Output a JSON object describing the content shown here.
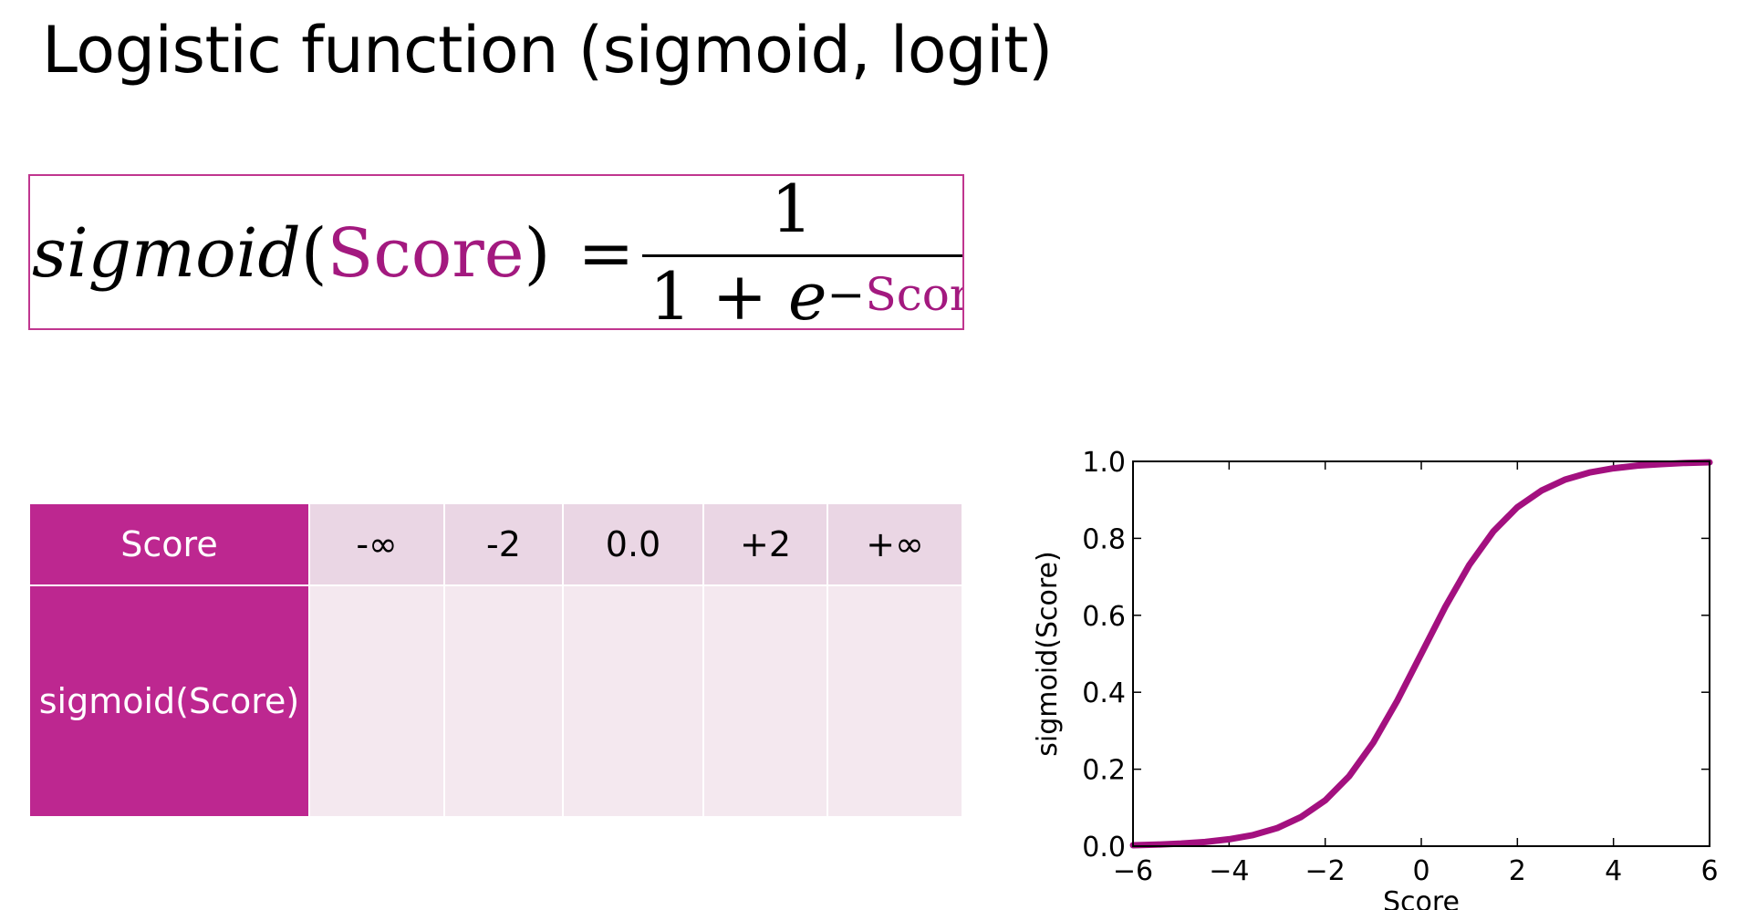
{
  "title": "Logistic function (sigmoid, logit)",
  "formula": {
    "lhs_fn": "sigmoid",
    "lhs_open": "(",
    "lhs_arg": "Score",
    "lhs_close": ")",
    "equals": "=",
    "numerator": "1",
    "den_prefix": "1 + ",
    "den_base": "e",
    "den_exp_sign": "−",
    "den_exp_arg": "Score"
  },
  "table": {
    "row1_label": "Score",
    "row2_label": "sigmoid(Score)",
    "score_values": [
      "-∞",
      "-2",
      "0.0",
      "+2",
      "+∞"
    ],
    "sigmoid_values": [
      "",
      "",
      "",
      "",
      ""
    ]
  },
  "colors": {
    "accent": "#bd2790",
    "curve": "#a3107f",
    "header_light": "#ead6e4",
    "body_light": "#f4e8ef"
  },
  "chart_data": {
    "type": "line",
    "function": "sigmoid",
    "x": [
      -6,
      -5.5,
      -5,
      -4.5,
      -4,
      -3.5,
      -3,
      -2.5,
      -2,
      -1.5,
      -1,
      -0.5,
      0,
      0.5,
      1,
      1.5,
      2,
      2.5,
      3,
      3.5,
      4,
      4.5,
      5,
      5.5,
      6
    ],
    "y": [
      0.0025,
      0.0041,
      0.0067,
      0.011,
      0.018,
      0.029,
      0.047,
      0.076,
      0.119,
      0.182,
      0.269,
      0.378,
      0.5,
      0.622,
      0.731,
      0.818,
      0.881,
      0.924,
      0.953,
      0.971,
      0.982,
      0.989,
      0.993,
      0.996,
      0.9975
    ],
    "xlabel": "Score",
    "ylabel": "sigmoid(Score)",
    "xlim": [
      -6,
      6
    ],
    "ylim": [
      0.0,
      1.0
    ],
    "xticks": [
      "−6",
      "−4",
      "−2",
      "0",
      "2",
      "4",
      "6"
    ],
    "yticks": [
      "0.0",
      "0.2",
      "0.4",
      "0.6",
      "0.8",
      "1.0"
    ],
    "grid": false
  }
}
